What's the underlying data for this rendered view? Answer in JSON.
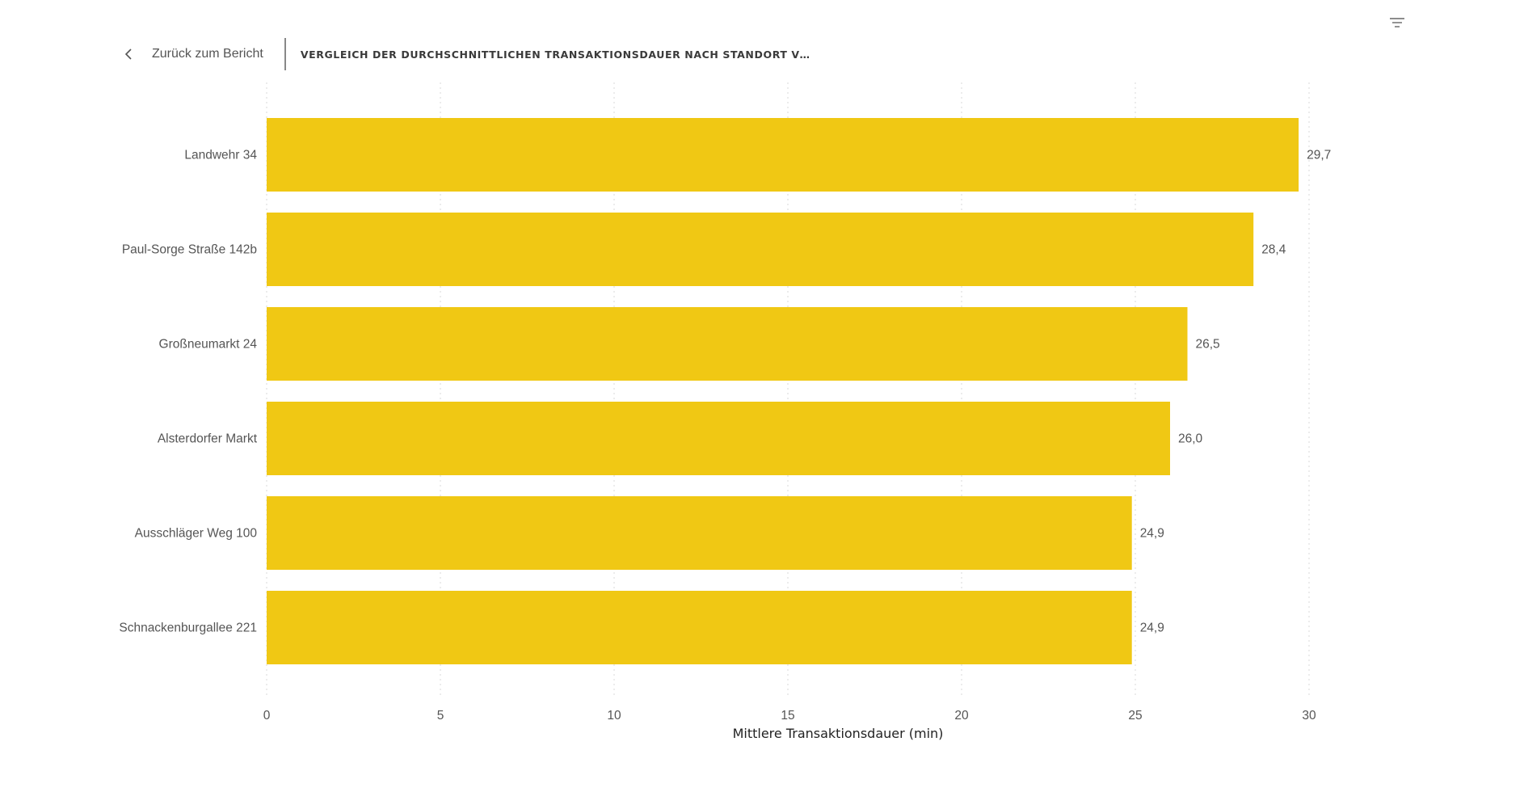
{
  "header": {
    "back_label": "Zurück zum Bericht",
    "title": "VERGLEICH DER DURCHSCHNITTLICHEN TRANSAKTIONSDAUER NACH STANDORT VON JUNI…"
  },
  "icons": {
    "back": "chevron-left-icon",
    "filter": "filter-icon"
  },
  "colors": {
    "bar": "#F0C814",
    "grid": "#d9d9d9"
  },
  "chart_data": {
    "type": "bar",
    "orientation": "horizontal",
    "categories": [
      "Landwehr 34",
      "Paul-Sorge Straße 142b",
      "Großneumarkt 24",
      "Alsterdorfer Markt",
      "Ausschläger Weg 100",
      "Schnackenburgallee 221"
    ],
    "values": [
      29.7,
      28.4,
      26.5,
      26.0,
      24.9,
      24.9
    ],
    "value_labels": [
      "29,7",
      "28,4",
      "26,5",
      "26,0",
      "24,9",
      "24,9"
    ],
    "xlabel": "Mittlere Transaktionsdauer (min)",
    "ylabel": "",
    "xlim": [
      0,
      30
    ],
    "x_ticks": [
      0,
      5,
      10,
      15,
      20,
      25,
      30
    ],
    "grid": true
  }
}
